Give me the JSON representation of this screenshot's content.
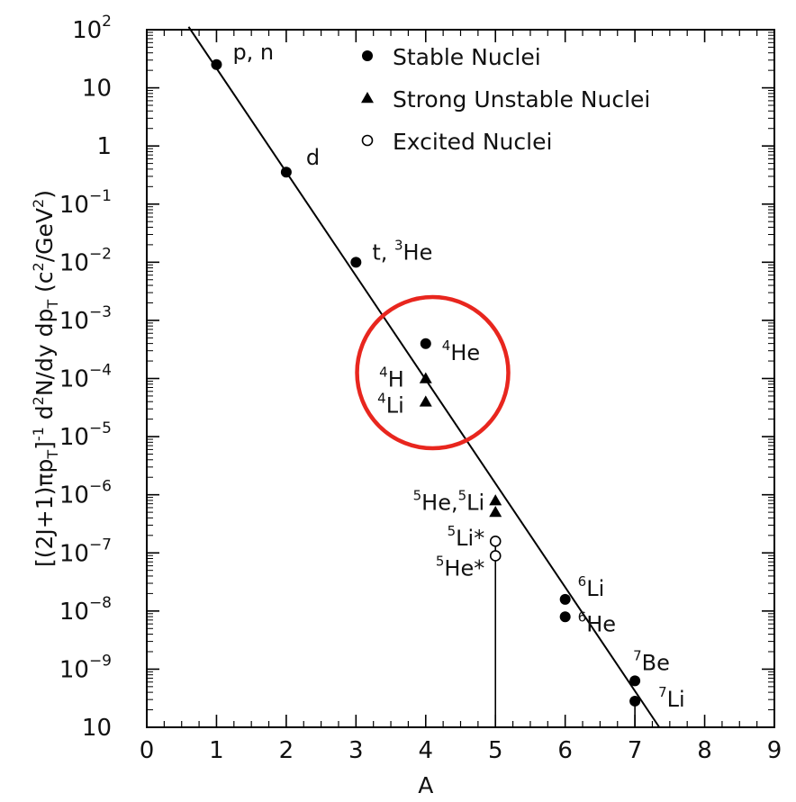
{
  "chart_data": {
    "type": "scatter",
    "xlabel": "A",
    "ylabel": "[(2J+1)πp_T]^-1 d²N/dy dp_T (c²/GeV²)",
    "ylabel_parts": [
      "[(2J+1)πp",
      "T",
      "]",
      "-1",
      " d",
      "2",
      "N/dy dp",
      "T",
      " (c",
      "2",
      "/GeV",
      "2",
      ")"
    ],
    "xlim": [
      0,
      9
    ],
    "ylim_log10": [
      -10,
      2
    ],
    "log_y": true,
    "x_ticks": [
      "0",
      "1",
      "2",
      "3",
      "4",
      "5",
      "6",
      "7",
      "8",
      "9"
    ],
    "y_ticks": [
      {
        "exp": 2,
        "base": "10",
        "sup": "2"
      },
      {
        "exp": 1,
        "base": "10",
        "sup": ""
      },
      {
        "exp": 0,
        "base": "1",
        "sup": ""
      },
      {
        "exp": -1,
        "base": "10",
        "sup": "−1"
      },
      {
        "exp": -2,
        "base": "10",
        "sup": "−2"
      },
      {
        "exp": -3,
        "base": "10",
        "sup": "−3"
      },
      {
        "exp": -4,
        "base": "10",
        "sup": "−4"
      },
      {
        "exp": -5,
        "base": "10",
        "sup": "−5"
      },
      {
        "exp": -6,
        "base": "10",
        "sup": "−6"
      },
      {
        "exp": -7,
        "base": "10",
        "sup": "−7"
      },
      {
        "exp": -8,
        "base": "10",
        "sup": "−8"
      },
      {
        "exp": -9,
        "base": "10",
        "sup": "−9"
      },
      {
        "exp": -10,
        "base": "10",
        "sup": ""
      }
    ],
    "legend": [
      {
        "marker": "filled-circle",
        "label": "Stable Nuclei"
      },
      {
        "marker": "filled-triangle",
        "label": "Strong Unstable Nuclei"
      },
      {
        "marker": "open-circle",
        "label": "Excited Nuclei"
      }
    ],
    "fit_line": {
      "x": [
        0.6,
        7.35
      ],
      "log10_y": [
        2.05,
        -10.0
      ]
    },
    "points": [
      {
        "name": "p-n",
        "x": 1,
        "log10_y": 1.4,
        "marker": "filled-circle"
      },
      {
        "name": "d",
        "x": 2,
        "log10_y": -0.45,
        "marker": "filled-circle"
      },
      {
        "name": "t-3he",
        "x": 3,
        "log10_y": -2.0,
        "marker": "filled-circle"
      },
      {
        "name": "4he",
        "x": 4,
        "log10_y": -3.4,
        "marker": "filled-circle"
      },
      {
        "name": "4h",
        "x": 4,
        "log10_y": -4.0,
        "marker": "filled-triangle"
      },
      {
        "name": "4li",
        "x": 4,
        "log10_y": -4.4,
        "marker": "filled-triangle"
      },
      {
        "name": "5he",
        "x": 5,
        "log10_y": -6.1,
        "marker": "filled-triangle"
      },
      {
        "name": "5li",
        "x": 5,
        "log10_y": -6.3,
        "marker": "filled-triangle"
      },
      {
        "name": "5li-star",
        "x": 5,
        "log10_y": -6.8,
        "marker": "open-circle",
        "drop_line": true
      },
      {
        "name": "5he-star",
        "x": 5,
        "log10_y": -7.05,
        "marker": "open-circle"
      },
      {
        "name": "6li",
        "x": 6,
        "log10_y": -7.8,
        "marker": "filled-circle"
      },
      {
        "name": "6he",
        "x": 6,
        "log10_y": -8.1,
        "marker": "filled-circle"
      },
      {
        "name": "7be",
        "x": 7,
        "log10_y": -9.2,
        "marker": "filled-circle"
      },
      {
        "name": "7li",
        "x": 7,
        "log10_y": -9.55,
        "marker": "filled-circle",
        "drop_line": true
      }
    ],
    "labels": [
      {
        "name": "p-n",
        "text": "p, n",
        "sup": ""
      },
      {
        "name": "d",
        "text": "d",
        "sup": ""
      },
      {
        "name": "t-3he",
        "text": "t, ",
        "sup": "3",
        "text2": "He"
      },
      {
        "name": "4he",
        "text": "He",
        "sup": "4"
      },
      {
        "name": "4h",
        "text": "H",
        "sup": "4"
      },
      {
        "name": "4li",
        "text": "Li",
        "sup": "4"
      },
      {
        "name": "5he-5li",
        "text": "He,",
        "sup": "5",
        "sup2": "5",
        "text2": "Li"
      },
      {
        "name": "5li-star",
        "text": "Li*",
        "sup": "5"
      },
      {
        "name": "5he-star",
        "text": "He*",
        "sup": "5"
      },
      {
        "name": "6li",
        "text": "Li",
        "sup": "6"
      },
      {
        "name": "6he",
        "text": "He",
        "sup": "6"
      },
      {
        "name": "7be",
        "text": "Be",
        "sup": "7"
      },
      {
        "name": "7li",
        "text": "Li",
        "sup": "7"
      }
    ],
    "highlight": {
      "shape": "circle",
      "color": "#e8261e",
      "center": {
        "x": 4.1,
        "log10_y": -3.9
      },
      "around": [
        "4he",
        "4h",
        "4li"
      ]
    },
    "colors": {
      "marks": "#000000",
      "highlight": "#e8261e"
    }
  }
}
